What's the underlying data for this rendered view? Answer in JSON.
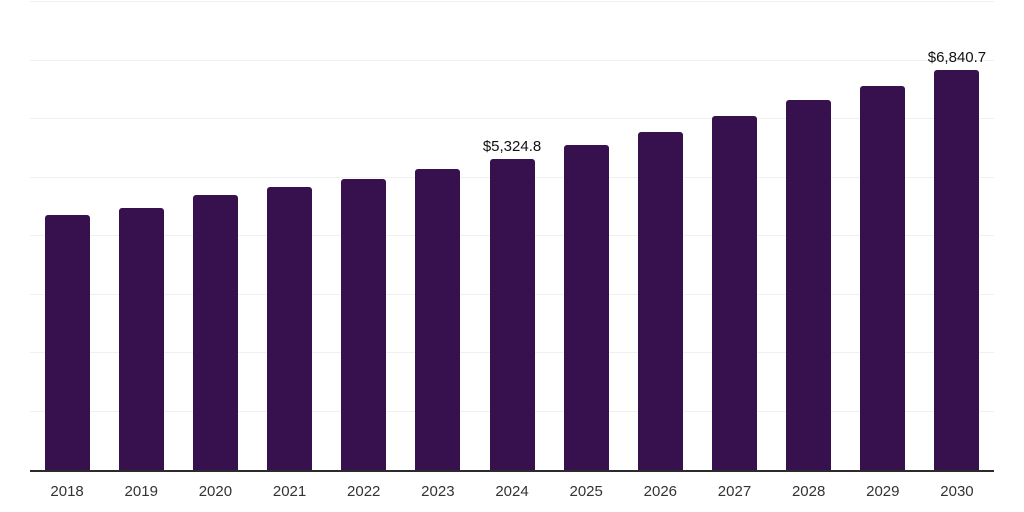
{
  "chart_data": {
    "type": "bar",
    "title": "",
    "xlabel": "",
    "ylabel": "",
    "categories": [
      "2018",
      "2019",
      "2020",
      "2021",
      "2022",
      "2023",
      "2024",
      "2025",
      "2026",
      "2027",
      "2028",
      "2029",
      "2030"
    ],
    "values": [
      4360,
      4480,
      4700,
      4835,
      4980,
      5145,
      5324.8,
      5555,
      5775,
      6050,
      6320,
      6560,
      6840.7
    ],
    "value_labels": [
      "",
      "",
      "",
      "",
      "",
      "",
      "$5,324.8",
      "",
      "",
      "",
      "",
      "",
      "$6,840.7"
    ],
    "labeled_points": {
      "2024": "$5,324.8",
      "2030": "$6,840.7"
    },
    "ylim": [
      0,
      8000
    ],
    "gridline_step": 1000,
    "grid": "horizontal",
    "legend": "none",
    "y_tick_labels_visible": false
  },
  "colors": {
    "bar": "#36114d",
    "gridline": "#f0f0f0",
    "axis": "#2b2b2b",
    "data_label": "#111111",
    "tick_label": "#333333",
    "background": "#ffffff"
  }
}
